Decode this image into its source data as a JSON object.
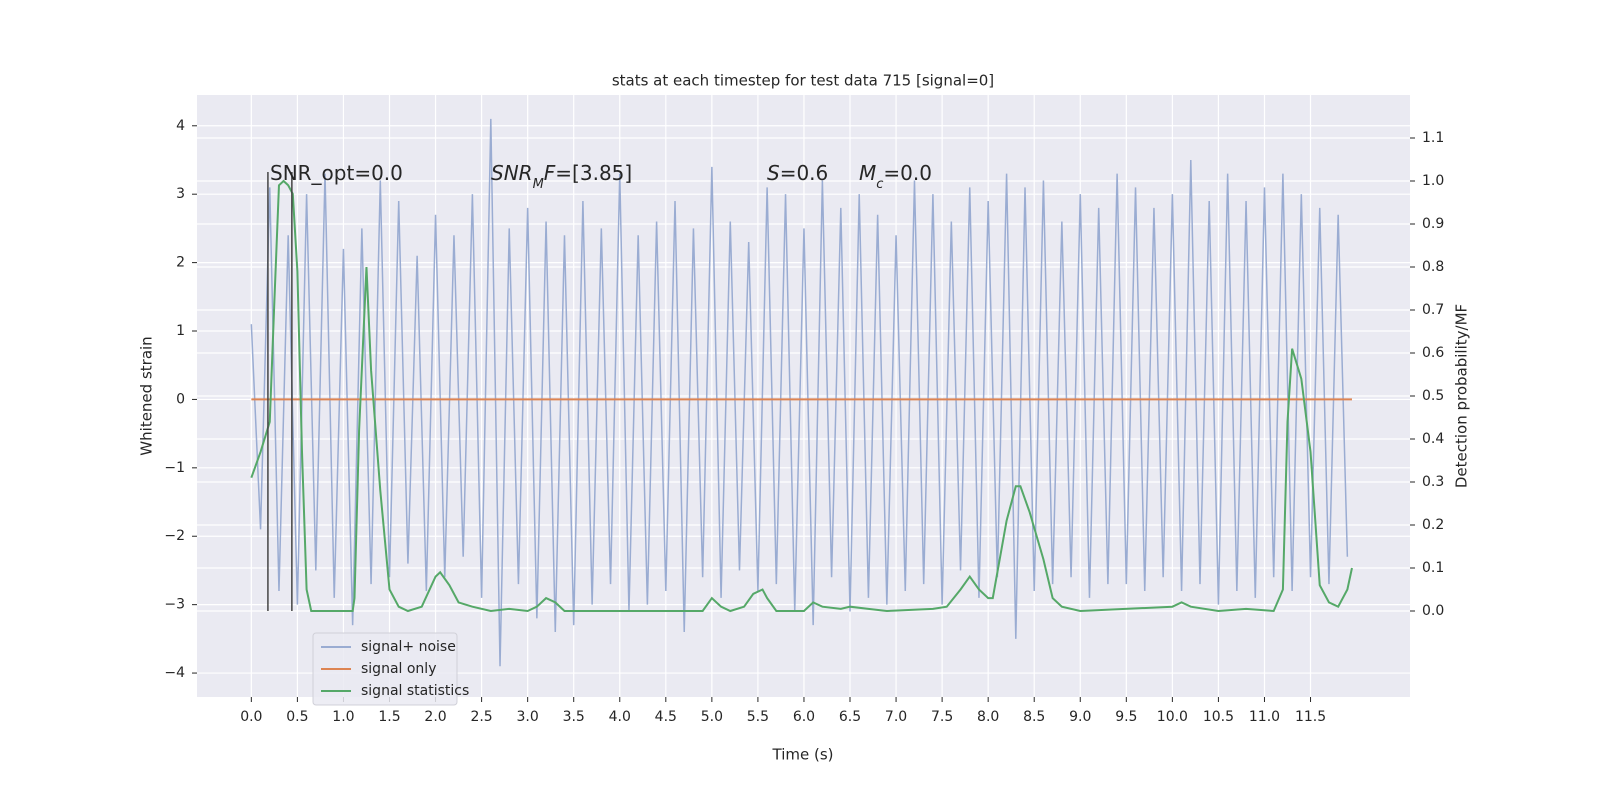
{
  "chart_data": {
    "type": "line",
    "title": "stats at each timestep for test data 715 [signal=0]",
    "x_label": "Time (s)",
    "y_label": "Whitened strain",
    "y2_label": "Detection probability/MF",
    "xlim": [
      -0.59,
      12.58
    ],
    "ylim": [
      -4.35,
      4.45
    ],
    "y2lim": [
      -0.2,
      1.2
    ],
    "xticks": [
      {
        "value": 0,
        "label": "0.0"
      },
      0.5,
      {
        "value": 1,
        "label": "1.0"
      },
      1.5,
      {
        "value": 2,
        "label": "2.0"
      },
      2.5,
      {
        "value": 3,
        "label": "3.0"
      },
      3.5,
      {
        "value": 4,
        "label": "4.0"
      },
      4.5,
      {
        "value": 5,
        "label": "5.0"
      },
      5.5,
      {
        "value": 6,
        "label": "6.0"
      },
      6.5,
      {
        "value": 7,
        "label": "7.0"
      },
      7.5,
      {
        "value": 8,
        "label": "8.0"
      },
      8.5,
      {
        "value": 9,
        "label": "9.0"
      },
      9.5,
      {
        "value": 10,
        "label": "10.0"
      },
      10.5,
      {
        "value": 11,
        "label": "11.0"
      },
      11.5
    ],
    "yticks": [
      {
        "value": -4,
        "label": "−4"
      },
      {
        "value": -3,
        "label": "−3"
      },
      {
        "value": -2,
        "label": "−2"
      },
      {
        "value": -1,
        "label": "−1"
      },
      0,
      1,
      2,
      3,
      4
    ],
    "y2ticks": [
      {
        "value": 0,
        "label": "0.0"
      },
      0.1,
      0.2,
      0.3,
      0.4,
      0.5,
      0.6,
      0.7,
      0.8,
      0.9,
      {
        "value": 1,
        "label": "1.0"
      },
      1.1
    ],
    "grid": true,
    "legend": "lower left",
    "vlines": [
      0.18,
      0.44
    ],
    "annotations": [
      [
        {
          "text": "SNR_opt=0.0"
        }
      ],
      [
        {
          "text": "SNR",
          "italic": true
        },
        {
          "text": "M",
          "italic": true,
          "sub": true
        },
        {
          "text": "F",
          "italic": true
        },
        {
          "text": "=[3.85]"
        }
      ],
      [
        {
          "text": "S",
          "italic": true
        },
        {
          "text": "=0.6"
        }
      ],
      [
        {
          "text": "M",
          "italic": true
        },
        {
          "text": "c",
          "italic": true,
          "sub": true
        },
        {
          "text": "=0.0"
        }
      ]
    ],
    "series": [
      {
        "name": "signal+ noise",
        "color": "#9aacd2",
        "x": [
          0.0,
          0.1,
          0.2,
          0.3,
          0.4,
          0.5,
          0.6,
          0.7,
          0.8,
          0.9,
          1.0,
          1.1,
          1.2,
          1.3,
          1.4,
          1.5,
          1.6,
          1.7,
          1.8,
          1.9,
          2.0,
          2.1,
          2.2,
          2.3,
          2.4,
          2.5,
          2.6,
          2.7,
          2.8,
          2.9,
          3.0,
          3.1,
          3.2,
          3.3,
          3.4,
          3.5,
          3.6,
          3.7,
          3.8,
          3.9,
          4.0,
          4.1,
          4.2,
          4.3,
          4.4,
          4.5,
          4.6,
          4.7,
          4.8,
          4.9,
          5.0,
          5.1,
          5.2,
          5.3,
          5.4,
          5.5,
          5.6,
          5.7,
          5.8,
          5.9,
          6.0,
          6.1,
          6.2,
          6.3,
          6.4,
          6.5,
          6.6,
          6.7,
          6.8,
          6.9,
          7.0,
          7.1,
          7.2,
          7.3,
          7.4,
          7.5,
          7.6,
          7.7,
          7.8,
          7.9,
          8.0,
          8.1,
          8.2,
          8.3,
          8.4,
          8.5,
          8.6,
          8.7,
          8.8,
          8.9,
          9.0,
          9.1,
          9.2,
          9.3,
          9.4,
          9.5,
          9.6,
          9.7,
          9.8,
          9.9,
          10.0,
          10.1,
          10.2,
          10.3,
          10.4,
          10.5,
          10.6,
          10.7,
          10.8,
          10.9,
          11.0,
          11.1,
          11.2,
          11.3,
          11.4,
          11.5,
          11.6,
          11.7,
          11.8,
          11.9
        ],
        "values": [
          1.1,
          -1.9,
          3.1,
          -2.8,
          2.4,
          -3.0,
          3.0,
          -2.5,
          3.3,
          -2.9,
          2.2,
          -3.3,
          2.5,
          -2.7,
          3.2,
          -2.6,
          2.9,
          -2.4,
          2.1,
          -2.8,
          2.7,
          -2.6,
          2.4,
          -2.3,
          3.0,
          -2.9,
          4.1,
          -3.9,
          2.5,
          -2.7,
          2.8,
          -3.2,
          2.6,
          -3.4,
          2.4,
          -3.3,
          2.9,
          -3.0,
          2.5,
          -2.7,
          3.3,
          -3.1,
          2.4,
          -3.0,
          2.6,
          -2.8,
          2.9,
          -3.4,
          2.5,
          -2.6,
          3.4,
          -2.9,
          2.6,
          -2.5,
          2.3,
          -2.8,
          3.1,
          -2.7,
          3.0,
          -3.1,
          2.5,
          -3.3,
          3.2,
          -2.6,
          2.8,
          -3.1,
          3.0,
          -2.9,
          2.7,
          -3.0,
          2.4,
          -2.8,
          3.2,
          -2.7,
          3.0,
          -3.0,
          2.6,
          -2.5,
          3.1,
          -2.9,
          2.9,
          -2.6,
          3.3,
          -3.5,
          3.1,
          -2.8,
          3.2,
          -2.7,
          2.6,
          -2.6,
          3.0,
          -2.9,
          2.8,
          -2.7,
          3.3,
          -2.7,
          3.1,
          -2.8,
          2.8,
          -2.6,
          3.0,
          -2.8,
          3.5,
          -2.7,
          2.9,
          -3.0,
          3.3,
          -2.8,
          2.9,
          -2.9,
          3.1,
          -2.6,
          3.3,
          -2.8,
          3.0,
          -2.6,
          2.8,
          -2.7,
          2.7,
          -2.3
        ]
      },
      {
        "name": "signal only",
        "color": "#dd8452",
        "x": [
          0.0,
          11.95
        ],
        "values": [
          0,
          0
        ]
      },
      {
        "name": "signal statistics",
        "color": "#55a868",
        "axis": "y2",
        "x": [
          0.0,
          0.1,
          0.2,
          0.25,
          0.3,
          0.35,
          0.4,
          0.45,
          0.5,
          0.55,
          0.6,
          0.65,
          1.1,
          1.12,
          1.17,
          1.25,
          1.3,
          1.4,
          1.5,
          1.6,
          1.7,
          1.85,
          2.0,
          2.05,
          2.15,
          2.25,
          2.4,
          2.6,
          2.8,
          3.0,
          3.1,
          3.2,
          3.3,
          3.4,
          4.9,
          5.0,
          5.1,
          5.2,
          5.35,
          5.45,
          5.55,
          5.6,
          5.7,
          6.0,
          6.1,
          6.2,
          6.4,
          6.5,
          6.7,
          6.9,
          7.4,
          7.55,
          7.7,
          7.8,
          7.9,
          8.0,
          8.05,
          8.2,
          8.3,
          8.35,
          8.45,
          8.6,
          8.7,
          8.8,
          9.0,
          10.0,
          10.1,
          10.2,
          10.5,
          10.8,
          11.1,
          11.2,
          11.25,
          11.3,
          11.4,
          11.5,
          11.6,
          11.7,
          11.8,
          11.9,
          11.95
        ],
        "values": [
          0.31,
          0.37,
          0.44,
          0.72,
          0.99,
          1.0,
          0.99,
          0.97,
          0.79,
          0.37,
          0.05,
          0.0,
          0.0,
          0.03,
          0.42,
          0.8,
          0.56,
          0.28,
          0.05,
          0.01,
          0.0,
          0.01,
          0.08,
          0.09,
          0.06,
          0.02,
          0.01,
          0.0,
          0.005,
          0.0,
          0.01,
          0.03,
          0.02,
          0.0,
          0.0,
          0.03,
          0.01,
          0.0,
          0.01,
          0.04,
          0.05,
          0.03,
          0.0,
          0.0,
          0.02,
          0.01,
          0.005,
          0.01,
          0.005,
          0.0,
          0.005,
          0.01,
          0.05,
          0.08,
          0.05,
          0.03,
          0.03,
          0.21,
          0.29,
          0.29,
          0.23,
          0.12,
          0.03,
          0.01,
          0.0,
          0.01,
          0.02,
          0.01,
          0.0,
          0.005,
          0.0,
          0.05,
          0.44,
          0.61,
          0.54,
          0.37,
          0.06,
          0.02,
          0.01,
          0.05,
          0.1
        ]
      }
    ]
  }
}
